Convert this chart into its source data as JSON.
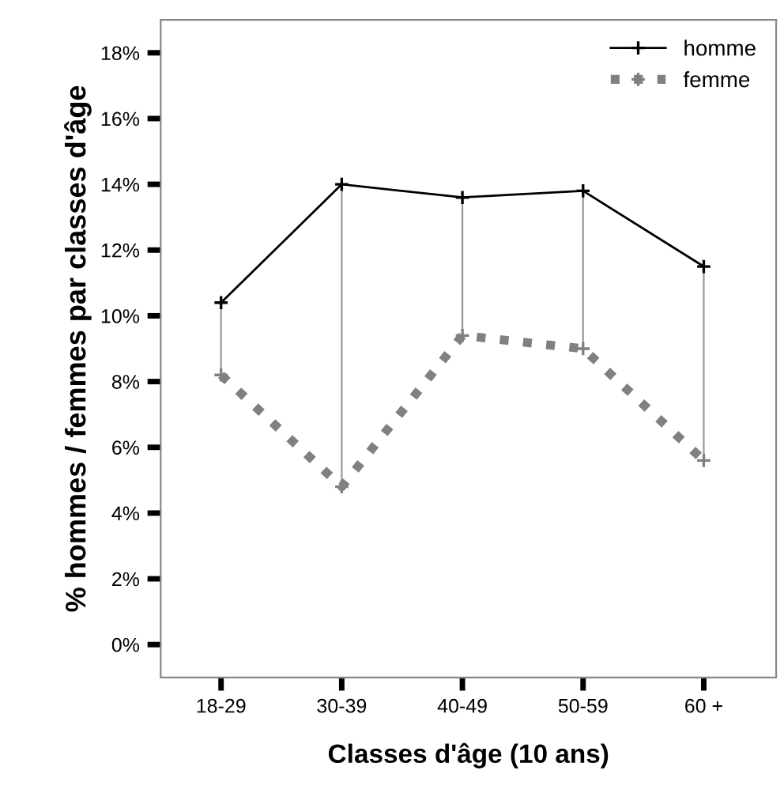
{
  "chart_data": {
    "type": "line",
    "xlabel": "Classes d'âge (10 ans)",
    "ylabel": "% hommes / femmes par classes d'âge",
    "categories": [
      "18-29",
      "30-39",
      "40-49",
      "50-59",
      "60 +"
    ],
    "series": [
      {
        "name": "homme",
        "color": "#000000",
        "line_style": "solid",
        "values": [
          10.4,
          14.0,
          13.6,
          13.8,
          11.5
        ]
      },
      {
        "name": "femme",
        "color": "#808080",
        "line_style": "dotted",
        "values": [
          8.2,
          4.8,
          9.4,
          9.0,
          5.6
        ],
        "errors": [
          [
            8.2,
            10.4
          ],
          [
            4.8,
            14.0
          ],
          [
            9.4,
            13.6
          ],
          [
            9.0,
            13.8
          ],
          [
            5.6,
            11.5
          ]
        ]
      }
    ],
    "ylim": [
      -1,
      19
    ],
    "yticks": [
      {
        "value": 0,
        "label": "0%"
      },
      {
        "value": 2,
        "label": "2%"
      },
      {
        "value": 4,
        "label": "4%"
      },
      {
        "value": 6,
        "label": "6%"
      },
      {
        "value": 8,
        "label": "8%"
      },
      {
        "value": 10,
        "label": "10%"
      },
      {
        "value": 12,
        "label": "12%"
      },
      {
        "value": 14,
        "label": "14%"
      },
      {
        "value": 16,
        "label": "16%"
      },
      {
        "value": 18,
        "label": "18%"
      }
    ],
    "marker": "cross",
    "grid": false,
    "legend": "top right"
  }
}
